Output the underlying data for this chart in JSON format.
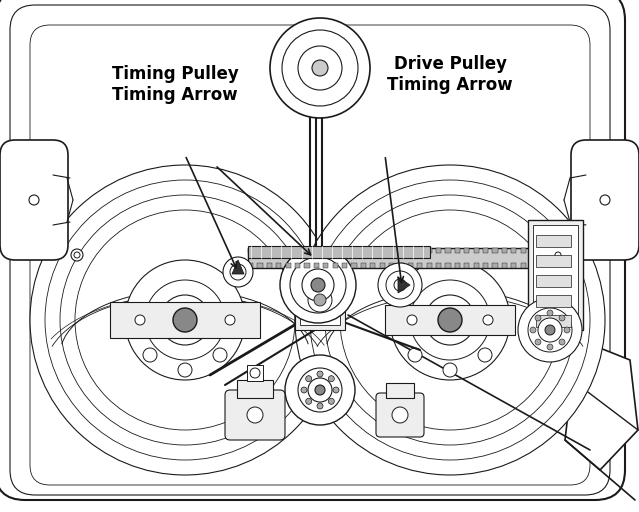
{
  "bg_color": "#ffffff",
  "line_color": "#1a1a1a",
  "text_color": "#000000",
  "label1": "Timing Pulley\nTiming Arrow",
  "label2": "Drive Pulley\nTiming Arrow",
  "figsize": [
    6.39,
    5.12
  ],
  "dpi": 100
}
